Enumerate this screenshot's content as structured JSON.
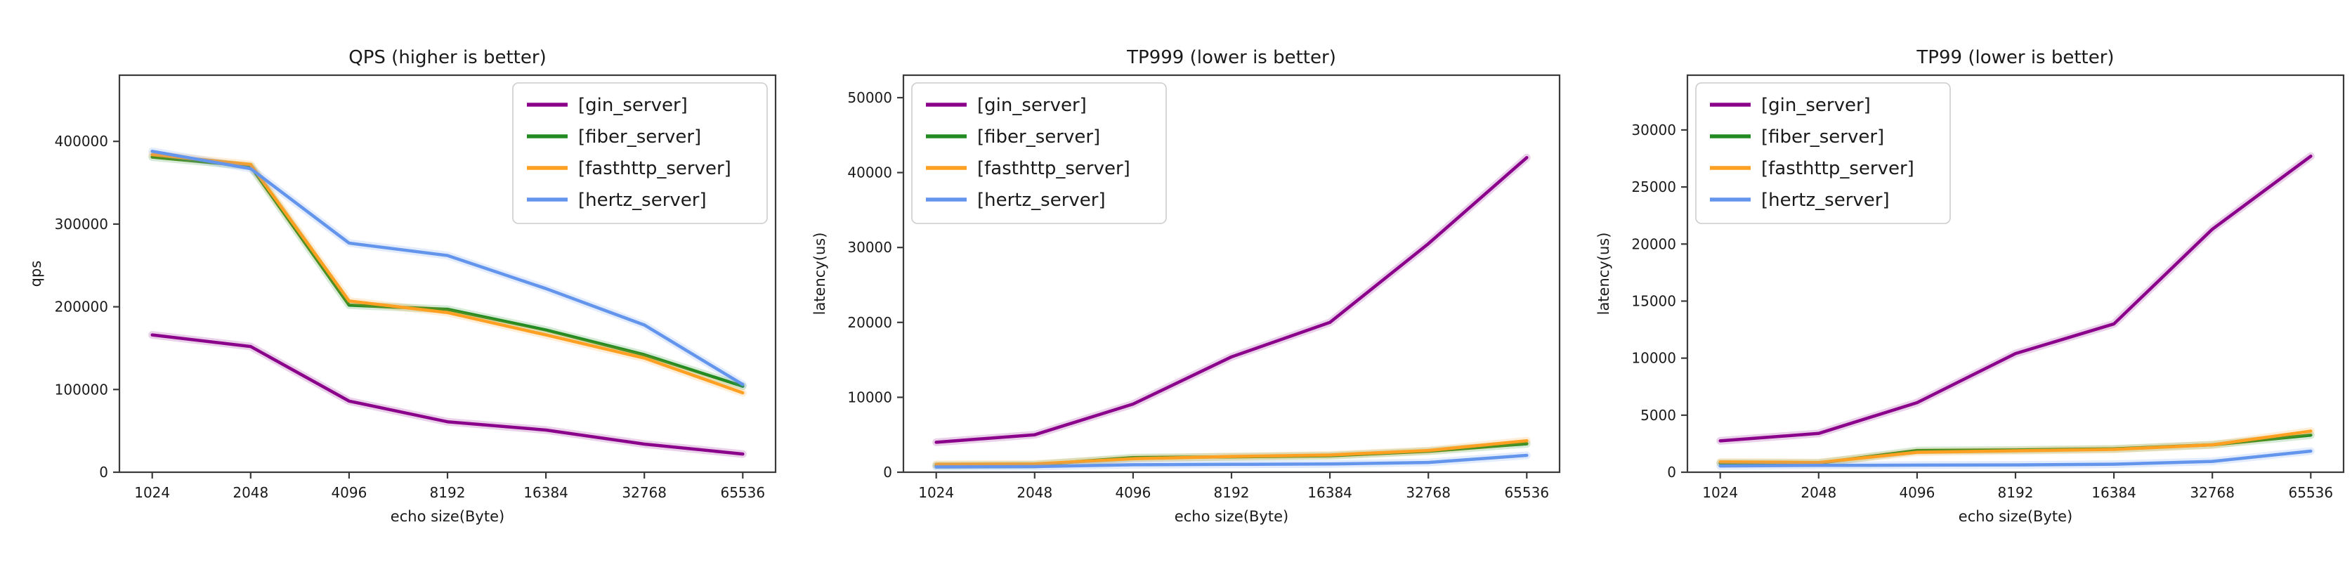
{
  "figure": {
    "background": "#ffffff",
    "spine_color": "#3a3a3a",
    "text_color": "#1a1a1a",
    "legend_border_color": "#cccccc"
  },
  "chart_data": [
    {
      "type": "line",
      "title": "QPS (higher is better)",
      "xlabel": "echo size(Byte)",
      "ylabel": "qps",
      "x_scale": "log2",
      "grid": false,
      "legend_position": "top-right",
      "categories": [
        "1024",
        "2048",
        "4096",
        "8192",
        "16384",
        "32768",
        "65536"
      ],
      "yticks": [
        0,
        100000,
        200000,
        300000,
        400000
      ],
      "ylim": [
        0,
        480000
      ],
      "series": [
        {
          "name": "[gin_server]",
          "color": "#8B008B",
          "values": [
            166000,
            152000,
            86000,
            61000,
            51000,
            34000,
            22000
          ]
        },
        {
          "name": "[fiber_server]",
          "color": "#228B22",
          "values": [
            381000,
            370000,
            202000,
            197000,
            172000,
            142000,
            104000
          ]
        },
        {
          "name": "[fasthttp_server]",
          "color": "#FFA022",
          "values": [
            384000,
            372000,
            207000,
            193000,
            166000,
            138000,
            96000
          ]
        },
        {
          "name": "[hertz_server]",
          "color": "#6495ED",
          "values": [
            388000,
            367000,
            277000,
            262000,
            222000,
            178000,
            106000
          ]
        }
      ]
    },
    {
      "type": "line",
      "title": "TP999 (lower is better)",
      "xlabel": "echo size(Byte)",
      "ylabel": "latency(us)",
      "x_scale": "log2",
      "grid": false,
      "legend_position": "top-left",
      "categories": [
        "1024",
        "2048",
        "4096",
        "8192",
        "16384",
        "32768",
        "65536"
      ],
      "yticks": [
        0,
        10000,
        20000,
        30000,
        40000,
        50000
      ],
      "ylim": [
        0,
        53000
      ],
      "series": [
        {
          "name": "[gin_server]",
          "color": "#8B008B",
          "values": [
            4000,
            5000,
            9100,
            15400,
            20000,
            30500,
            42000
          ]
        },
        {
          "name": "[fiber_server]",
          "color": "#228B22",
          "values": [
            900,
            1000,
            1950,
            2050,
            2200,
            2800,
            3800
          ]
        },
        {
          "name": "[fasthttp_server]",
          "color": "#FFA022",
          "values": [
            1050,
            1100,
            1800,
            2100,
            2300,
            2900,
            4200
          ]
        },
        {
          "name": "[hertz_server]",
          "color": "#6495ED",
          "values": [
            700,
            750,
            1000,
            1050,
            1100,
            1300,
            2250
          ]
        }
      ]
    },
    {
      "type": "line",
      "title": "TP99 (lower is better)",
      "xlabel": "echo size(Byte)",
      "ylabel": "latency(us)",
      "x_scale": "log2",
      "grid": false,
      "legend_position": "top-left",
      "categories": [
        "1024",
        "2048",
        "4096",
        "8192",
        "16384",
        "32768",
        "65536"
      ],
      "yticks": [
        0,
        5000,
        10000,
        15000,
        20000,
        25000,
        30000
      ],
      "ylim": [
        0,
        34800
      ],
      "series": [
        {
          "name": "[gin_server]",
          "color": "#8B008B",
          "values": [
            2750,
            3400,
            6100,
            10400,
            13000,
            21300,
            27700
          ]
        },
        {
          "name": "[fiber_server]",
          "color": "#228B22",
          "values": [
            800,
            800,
            1900,
            1950,
            2050,
            2400,
            3250
          ]
        },
        {
          "name": "[fasthttp_server]",
          "color": "#FFA022",
          "values": [
            900,
            850,
            1750,
            1875,
            2000,
            2400,
            3600
          ]
        },
        {
          "name": "[hertz_server]",
          "color": "#6495ED",
          "values": [
            550,
            600,
            620,
            640,
            700,
            950,
            1850
          ]
        }
      ]
    }
  ]
}
